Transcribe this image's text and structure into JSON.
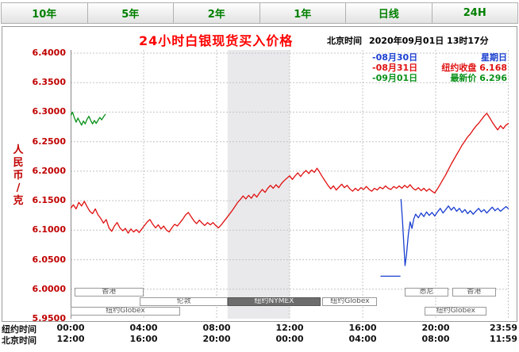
{
  "tabs": [
    {
      "label": "10年"
    },
    {
      "label": "5年"
    },
    {
      "label": "2年"
    },
    {
      "label": "1年"
    },
    {
      "label": "日线"
    },
    {
      "label": "24H"
    }
  ],
  "header": {
    "title": "24小时白银现货买入价格",
    "clock_label": "北京时间",
    "clock_value": "2020年09月01日 13时17分"
  },
  "legend": [
    {
      "sample": "-",
      "date": "08月30日",
      "desc": "星期日",
      "color": "#1a3fd0"
    },
    {
      "sample": "-",
      "date": "08月31日",
      "desc": "纽约收盘 6.168",
      "color": "#e01010"
    },
    {
      "sample": "-",
      "date": "09月01日",
      "desc": "最新价 6.296",
      "color": "#089018"
    }
  ],
  "y_axis_title": "人民币/克",
  "x_axis_rows": [
    {
      "label": "纽约时间",
      "ticks": [
        "00:00",
        "04:00",
        "08:00",
        "12:00",
        "16:00",
        "20:00",
        "23:59"
      ]
    },
    {
      "label": "北京时间",
      "ticks": [
        "12:00",
        "16:00",
        "20:00",
        "00:00",
        "04:00",
        "08:00",
        "11:59"
      ]
    }
  ],
  "sessions": [
    {
      "label": "香港",
      "row": 0,
      "t0": 0.2,
      "t1": 4.0,
      "dark": false
    },
    {
      "label": "伦敦",
      "row": 1,
      "t0": 3.8,
      "t1": 8.6,
      "dark": false
    },
    {
      "label": "纽约NYMEX",
      "row": 1,
      "t0": 8.6,
      "t1": 13.7,
      "dark": true
    },
    {
      "label": "纽约Globex",
      "row": 1,
      "t0": 13.8,
      "t1": 16.8,
      "dark": false
    },
    {
      "label": "纽约Globex",
      "row": 2,
      "t0": 0.0,
      "t1": 6.0,
      "dark": false
    },
    {
      "label": "悉尼",
      "row": 0,
      "t0": 18.3,
      "t1": 20.7,
      "dark": false
    },
    {
      "label": "香港",
      "row": 0,
      "t0": 20.9,
      "t1": 23.3,
      "dark": false
    },
    {
      "label": "纽约Globex",
      "row": 2,
      "t0": 19.4,
      "t1": 22.8,
      "dark": false
    }
  ],
  "chart_data": {
    "type": "line",
    "title": "24小时白银现货买入价格",
    "ylabel": "人民币/克",
    "ylim": [
      5.95,
      6.4
    ],
    "y_ticks": [
      "6.4000",
      "6.3500",
      "6.3000",
      "6.2500",
      "6.2000",
      "6.1500",
      "6.1000",
      "6.0500",
      "6.0000",
      "5.9500"
    ],
    "x_tick_hours": [
      0,
      4,
      8,
      12,
      16,
      20,
      24
    ],
    "shaded_band_hours": [
      8.6,
      12.0
    ],
    "grid": true,
    "ny_close": 6.168,
    "latest_price": 6.296,
    "series": [
      {
        "name": "08月30日 星期日",
        "color": "#1a3fd0",
        "segments": [
          [
            [
              17.0,
              6.022
            ],
            [
              18.05,
              6.022
            ]
          ],
          [
            [
              18.1,
              6.152
            ],
            [
              18.18,
              6.118
            ],
            [
              18.25,
              6.078
            ],
            [
              18.32,
              6.04
            ],
            [
              18.4,
              6.058
            ],
            [
              18.5,
              6.092
            ],
            [
              18.6,
              6.114
            ],
            [
              18.7,
              6.103
            ],
            [
              18.8,
              6.119
            ],
            [
              18.9,
              6.127
            ],
            [
              19.05,
              6.121
            ],
            [
              19.2,
              6.129
            ],
            [
              19.35,
              6.123
            ],
            [
              19.5,
              6.131
            ],
            [
              19.65,
              6.125
            ],
            [
              19.8,
              6.13
            ],
            [
              19.95,
              6.124
            ],
            [
              20.1,
              6.131
            ],
            [
              20.25,
              6.137
            ],
            [
              20.4,
              6.129
            ],
            [
              20.55,
              6.135
            ],
            [
              20.7,
              6.141
            ],
            [
              20.85,
              6.134
            ],
            [
              21.0,
              6.139
            ],
            [
              21.15,
              6.132
            ],
            [
              21.3,
              6.137
            ],
            [
              21.45,
              6.13
            ],
            [
              21.6,
              6.135
            ],
            [
              21.75,
              6.128
            ],
            [
              21.9,
              6.133
            ],
            [
              22.05,
              6.127
            ],
            [
              22.2,
              6.132
            ],
            [
              22.35,
              6.137
            ],
            [
              22.5,
              6.131
            ],
            [
              22.65,
              6.135
            ],
            [
              22.8,
              6.129
            ],
            [
              22.95,
              6.134
            ],
            [
              23.1,
              6.139
            ],
            [
              23.25,
              6.133
            ],
            [
              23.4,
              6.137
            ],
            [
              23.55,
              6.132
            ],
            [
              23.7,
              6.136
            ],
            [
              23.85,
              6.14
            ],
            [
              24.0,
              6.136
            ]
          ]
        ]
      },
      {
        "name": "08月31日",
        "color": "#e01010",
        "segments": [
          [
            [
              0.0,
              6.137
            ],
            [
              0.15,
              6.143
            ],
            [
              0.3,
              6.136
            ],
            [
              0.45,
              6.147
            ],
            [
              0.6,
              6.141
            ],
            [
              0.75,
              6.149
            ],
            [
              0.9,
              6.14
            ],
            [
              1.05,
              6.132
            ],
            [
              1.2,
              6.128
            ],
            [
              1.35,
              6.136
            ],
            [
              1.5,
              6.126
            ],
            [
              1.65,
              6.12
            ],
            [
              1.8,
              6.112
            ],
            [
              1.95,
              6.118
            ],
            [
              2.1,
              6.104
            ],
            [
              2.25,
              6.098
            ],
            [
              2.4,
              6.107
            ],
            [
              2.55,
              6.113
            ],
            [
              2.7,
              6.104
            ],
            [
              2.85,
              6.099
            ],
            [
              3.0,
              6.103
            ],
            [
              3.15,
              6.095
            ],
            [
              3.3,
              6.102
            ],
            [
              3.45,
              6.097
            ],
            [
              3.6,
              6.101
            ],
            [
              3.75,
              6.096
            ],
            [
              3.9,
              6.102
            ],
            [
              4.05,
              6.108
            ],
            [
              4.2,
              6.114
            ],
            [
              4.35,
              6.118
            ],
            [
              4.5,
              6.11
            ],
            [
              4.65,
              6.104
            ],
            [
              4.8,
              6.109
            ],
            [
              4.95,
              6.102
            ],
            [
              5.1,
              6.107
            ],
            [
              5.25,
              6.1
            ],
            [
              5.4,
              6.097
            ],
            [
              5.55,
              6.104
            ],
            [
              5.7,
              6.11
            ],
            [
              5.85,
              6.107
            ],
            [
              6.0,
              6.113
            ],
            [
              6.15,
              6.119
            ],
            [
              6.3,
              6.126
            ],
            [
              6.45,
              6.13
            ],
            [
              6.6,
              6.123
            ],
            [
              6.75,
              6.116
            ],
            [
              6.9,
              6.111
            ],
            [
              7.05,
              6.117
            ],
            [
              7.2,
              6.112
            ],
            [
              7.35,
              6.108
            ],
            [
              7.5,
              6.113
            ],
            [
              7.65,
              6.109
            ],
            [
              7.8,
              6.113
            ],
            [
              7.95,
              6.108
            ],
            [
              8.1,
              6.104
            ],
            [
              8.25,
              6.109
            ],
            [
              8.4,
              6.115
            ],
            [
              8.55,
              6.121
            ],
            [
              8.7,
              6.127
            ],
            [
              8.85,
              6.133
            ],
            [
              9.0,
              6.14
            ],
            [
              9.15,
              6.147
            ],
            [
              9.3,
              6.152
            ],
            [
              9.45,
              6.158
            ],
            [
              9.6,
              6.153
            ],
            [
              9.75,
              6.159
            ],
            [
              9.9,
              6.154
            ],
            [
              10.05,
              6.161
            ],
            [
              10.2,
              6.156
            ],
            [
              10.35,
              6.163
            ],
            [
              10.5,
              6.169
            ],
            [
              10.65,
              6.164
            ],
            [
              10.8,
              6.171
            ],
            [
              10.95,
              6.176
            ],
            [
              11.1,
              6.171
            ],
            [
              11.25,
              6.177
            ],
            [
              11.4,
              6.172
            ],
            [
              11.55,
              6.179
            ],
            [
              11.7,
              6.184
            ],
            [
              11.85,
              6.188
            ],
            [
              12.0,
              6.192
            ],
            [
              12.15,
              6.186
            ],
            [
              12.3,
              6.192
            ],
            [
              12.45,
              6.197
            ],
            [
              12.6,
              6.191
            ],
            [
              12.75,
              6.197
            ],
            [
              12.9,
              6.201
            ],
            [
              13.05,
              6.196
            ],
            [
              13.2,
              6.202
            ],
            [
              13.35,
              6.198
            ],
            [
              13.5,
              6.205
            ],
            [
              13.65,
              6.198
            ],
            [
              13.8,
              6.19
            ],
            [
              13.95,
              6.183
            ],
            [
              14.1,
              6.176
            ],
            [
              14.25,
              6.17
            ],
            [
              14.4,
              6.175
            ],
            [
              14.55,
              6.168
            ],
            [
              14.7,
              6.173
            ],
            [
              14.85,
              6.178
            ],
            [
              15.0,
              6.172
            ],
            [
              15.15,
              6.176
            ],
            [
              15.3,
              6.17
            ],
            [
              15.45,
              6.166
            ],
            [
              15.6,
              6.171
            ],
            [
              15.75,
              6.167
            ],
            [
              15.9,
              6.172
            ],
            [
              16.05,
              6.169
            ],
            [
              16.2,
              6.174
            ],
            [
              16.35,
              6.169
            ],
            [
              16.5,
              6.166
            ],
            [
              16.65,
              6.171
            ],
            [
              16.8,
              6.168
            ],
            [
              16.95,
              6.173
            ],
            [
              17.1,
              6.17
            ],
            [
              17.25,
              6.175
            ],
            [
              17.4,
              6.171
            ],
            [
              17.55,
              6.169
            ],
            [
              17.7,
              6.174
            ],
            [
              17.85,
              6.171
            ],
            [
              18.0,
              6.175
            ],
            [
              18.15,
              6.171
            ],
            [
              18.3,
              6.176
            ],
            [
              18.45,
              6.172
            ],
            [
              18.6,
              6.177
            ],
            [
              18.75,
              6.171
            ],
            [
              18.9,
              6.168
            ],
            [
              19.05,
              6.172
            ],
            [
              19.2,
              6.167
            ],
            [
              19.35,
              6.171
            ],
            [
              19.5,
              6.166
            ],
            [
              19.65,
              6.17
            ],
            [
              19.8,
              6.166
            ],
            [
              19.95,
              6.163
            ],
            [
              20.1,
              6.17
            ],
            [
              20.25,
              6.178
            ],
            [
              20.4,
              6.186
            ],
            [
              20.55,
              6.194
            ],
            [
              20.7,
              6.203
            ],
            [
              20.85,
              6.212
            ],
            [
              21.0,
              6.22
            ],
            [
              21.15,
              6.228
            ],
            [
              21.3,
              6.236
            ],
            [
              21.45,
              6.244
            ],
            [
              21.6,
              6.251
            ],
            [
              21.75,
              6.258
            ],
            [
              21.9,
              6.263
            ],
            [
              22.05,
              6.27
            ],
            [
              22.2,
              6.276
            ],
            [
              22.35,
              6.281
            ],
            [
              22.5,
              6.287
            ],
            [
              22.65,
              6.293
            ],
            [
              22.8,
              6.298
            ],
            [
              22.95,
              6.291
            ],
            [
              23.1,
              6.283
            ],
            [
              23.25,
              6.276
            ],
            [
              23.4,
              6.27
            ],
            [
              23.55,
              6.277
            ],
            [
              23.7,
              6.272
            ],
            [
              23.85,
              6.278
            ],
            [
              24.0,
              6.281
            ]
          ]
        ]
      },
      {
        "name": "09月01日",
        "color": "#089018",
        "segments": [
          [
            [
              0.0,
              6.294
            ],
            [
              0.1,
              6.3
            ],
            [
              0.2,
              6.291
            ],
            [
              0.3,
              6.283
            ],
            [
              0.4,
              6.29
            ],
            [
              0.5,
              6.284
            ],
            [
              0.6,
              6.278
            ],
            [
              0.7,
              6.285
            ],
            [
              0.8,
              6.28
            ],
            [
              0.9,
              6.288
            ],
            [
              1.0,
              6.293
            ],
            [
              1.1,
              6.286
            ],
            [
              1.2,
              6.28
            ],
            [
              1.3,
              6.286
            ],
            [
              1.4,
              6.281
            ],
            [
              1.5,
              6.286
            ],
            [
              1.6,
              6.291
            ],
            [
              1.7,
              6.287
            ],
            [
              1.8,
              6.292
            ],
            [
              1.9,
              6.296
            ]
          ]
        ]
      }
    ]
  }
}
